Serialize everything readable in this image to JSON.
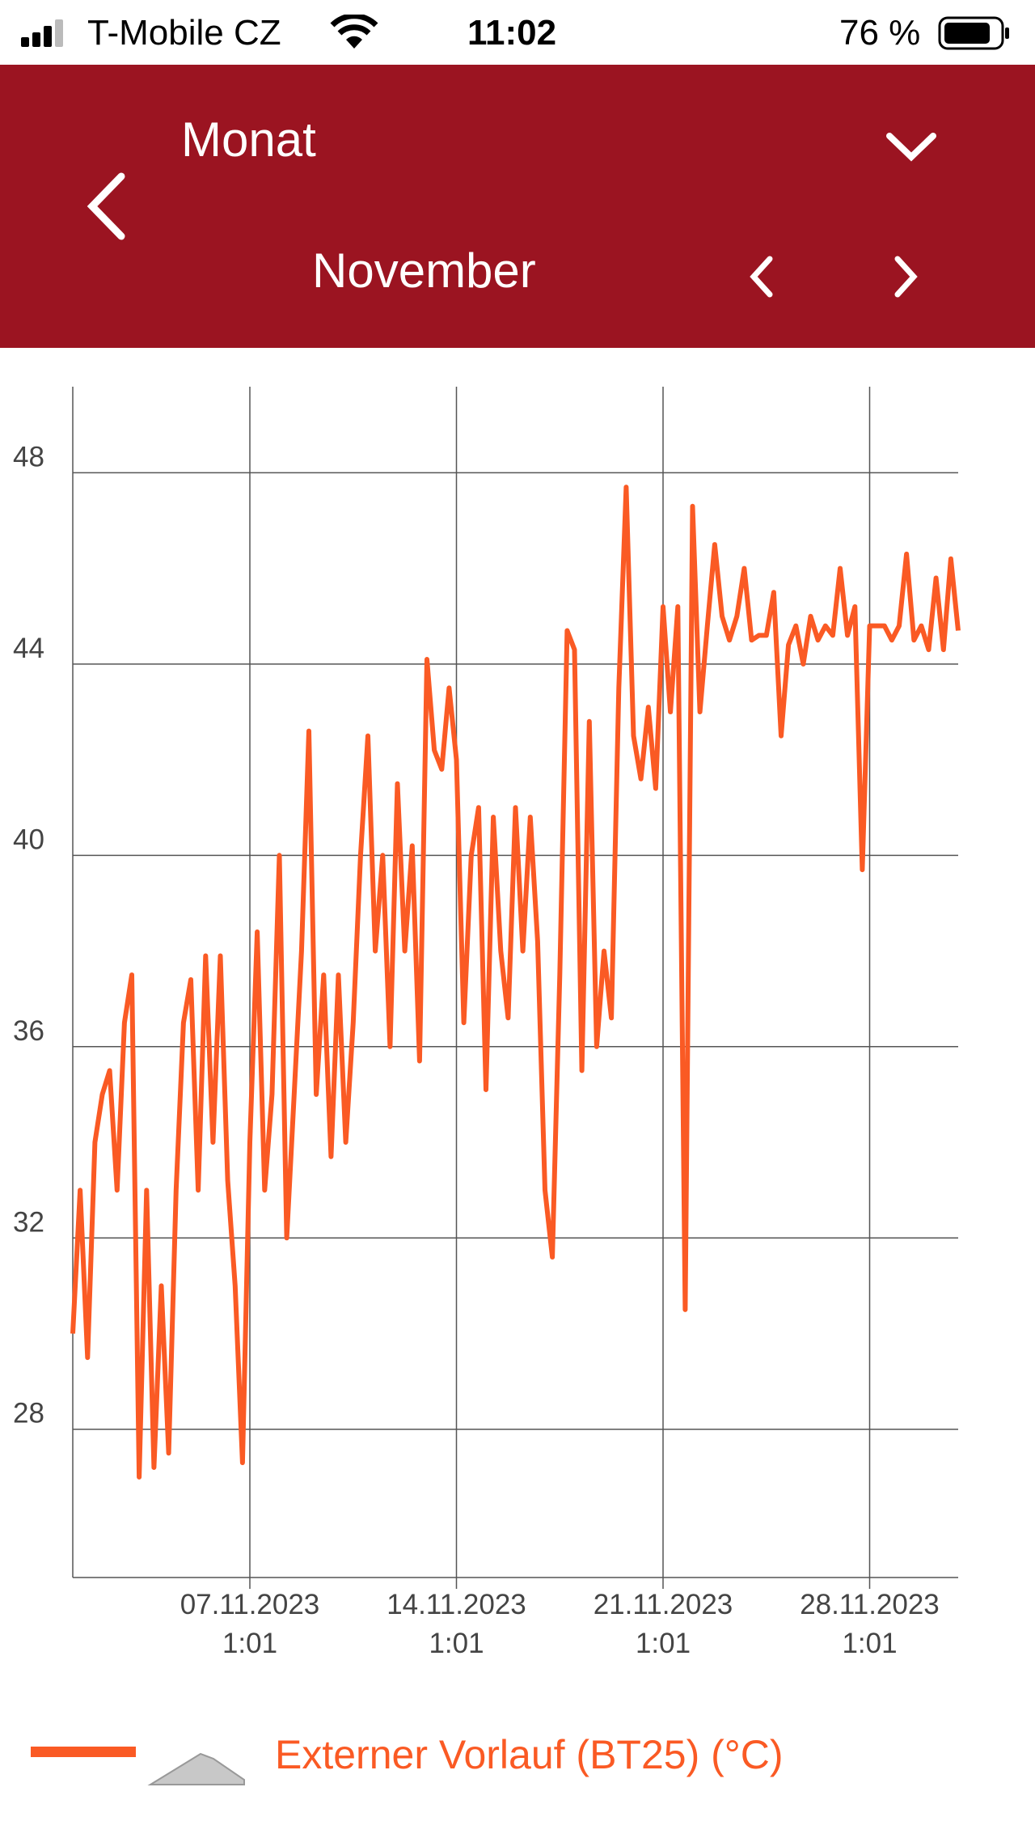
{
  "status_bar": {
    "carrier": "T-Mobile CZ",
    "time": "11:02",
    "battery": "76 %"
  },
  "header": {
    "period_label": "Monat",
    "period_value": "November"
  },
  "chart_data": {
    "type": "line",
    "x": [
      "2023-11-01T01:01",
      "2023-11-01T07:01",
      "2023-11-01T13:01",
      "2023-11-01T19:01",
      "2023-11-02T01:01",
      "2023-11-02T07:01",
      "2023-11-02T13:01",
      "2023-11-02T19:01",
      "2023-11-03T01:01",
      "2023-11-03T07:01",
      "2023-11-03T13:01",
      "2023-11-03T19:01",
      "2023-11-04T01:01",
      "2023-11-04T07:01",
      "2023-11-04T13:01",
      "2023-11-04T19:01",
      "2023-11-05T01:01",
      "2023-11-05T07:01",
      "2023-11-05T13:01",
      "2023-11-05T19:01",
      "2023-11-06T01:01",
      "2023-11-06T07:01",
      "2023-11-06T13:01",
      "2023-11-06T19:01",
      "2023-11-07T01:01",
      "2023-11-07T07:01",
      "2023-11-07T13:01",
      "2023-11-07T19:01",
      "2023-11-08T01:01",
      "2023-11-08T07:01",
      "2023-11-08T13:01",
      "2023-11-08T19:01",
      "2023-11-09T01:01",
      "2023-11-09T07:01",
      "2023-11-09T13:01",
      "2023-11-09T19:01",
      "2023-11-10T01:01",
      "2023-11-10T07:01",
      "2023-11-10T13:01",
      "2023-11-10T19:01",
      "2023-11-11T01:01",
      "2023-11-11T07:01",
      "2023-11-11T13:01",
      "2023-11-11T19:01",
      "2023-11-12T01:01",
      "2023-11-12T07:01",
      "2023-11-12T13:01",
      "2023-11-12T19:01",
      "2023-11-13T01:01",
      "2023-11-13T07:01",
      "2023-11-13T13:01",
      "2023-11-13T19:01",
      "2023-11-14T01:01",
      "2023-11-14T07:01",
      "2023-11-14T13:01",
      "2023-11-14T19:01",
      "2023-11-15T01:01",
      "2023-11-15T07:01",
      "2023-11-15T13:01",
      "2023-11-15T19:01",
      "2023-11-16T01:01",
      "2023-11-16T07:01",
      "2023-11-16T13:01",
      "2023-11-16T19:01",
      "2023-11-17T01:01",
      "2023-11-17T07:01",
      "2023-11-17T13:01",
      "2023-11-17T19:01",
      "2023-11-18T01:01",
      "2023-11-18T07:01",
      "2023-11-18T13:01",
      "2023-11-18T19:01",
      "2023-11-19T01:01",
      "2023-11-19T07:01",
      "2023-11-19T13:01",
      "2023-11-19T19:01",
      "2023-11-20T01:01",
      "2023-11-20T07:01",
      "2023-11-20T13:01",
      "2023-11-20T19:01",
      "2023-11-21T01:01",
      "2023-11-21T07:01",
      "2023-11-21T13:01",
      "2023-11-21T19:01",
      "2023-11-22T01:01",
      "2023-11-22T07:01",
      "2023-11-22T13:01",
      "2023-11-22T19:01",
      "2023-11-23T01:01",
      "2023-11-23T07:01",
      "2023-11-23T13:01",
      "2023-11-23T19:01",
      "2023-11-24T01:01",
      "2023-11-24T07:01",
      "2023-11-24T13:01",
      "2023-11-24T19:01",
      "2023-11-25T01:01",
      "2023-11-25T07:01",
      "2023-11-25T13:01",
      "2023-11-25T19:01",
      "2023-11-26T01:01",
      "2023-11-26T07:01",
      "2023-11-26T13:01",
      "2023-11-26T19:01",
      "2023-11-27T01:01",
      "2023-11-27T07:01",
      "2023-11-27T13:01",
      "2023-11-27T19:01",
      "2023-11-28T01:01",
      "2023-11-28T07:01",
      "2023-11-28T13:01",
      "2023-11-28T19:01",
      "2023-11-29T01:01",
      "2023-11-29T07:01",
      "2023-11-29T13:01",
      "2023-11-29T19:01",
      "2023-11-30T01:01",
      "2023-11-30T07:01",
      "2023-11-30T13:01",
      "2023-11-30T19:01",
      "2023-12-01T01:01"
    ],
    "series": [
      {
        "name": "Externer Vorlauf (BT25) (°C)",
        "color": "#fa5a24",
        "values": [
          30,
          33,
          29.5,
          34,
          35,
          35.5,
          33,
          36.5,
          37.5,
          27,
          33,
          27.2,
          31,
          27.5,
          33,
          36.5,
          37.4,
          33,
          37.9,
          34,
          37.9,
          33.2,
          31,
          27.3,
          34,
          38.4,
          33,
          35,
          40,
          32,
          35,
          38,
          42.6,
          35,
          37.5,
          33.7,
          37.5,
          34,
          36.5,
          40,
          42.5,
          38,
          40,
          36,
          41.5,
          38,
          40.2,
          35.7,
          44.1,
          42.2,
          41.8,
          43.5,
          42,
          36.5,
          40,
          41,
          35.1,
          40.8,
          38,
          36.6,
          41,
          38,
          40.8,
          38.2,
          33,
          31.6,
          37.5,
          44.7,
          44.3,
          35.5,
          42.8,
          36,
          38,
          36.6,
          43.5,
          47.7,
          42.5,
          41.6,
          43.1,
          41.4,
          45.2,
          43,
          45.2,
          30.5,
          47.3,
          43,
          44.8,
          46.5,
          45,
          44.5,
          45,
          46,
          44.5,
          44.6,
          44.6,
          45.5,
          42.5,
          44.4,
          44.8,
          44,
          45,
          44.5,
          44.8,
          44.6,
          46,
          44.6,
          45.2,
          39.7,
          44.8,
          44.8,
          44.8,
          44.5,
          44.8,
          46.3,
          44.5,
          44.8,
          44.3,
          45.8,
          44.3,
          46.2,
          44.7
        ]
      }
    ],
    "xlim": [
      "2023-11-01T01:01",
      "2023-12-01T01:01"
    ],
    "xticks": [
      {
        "value": "2023-11-07T01:01",
        "label": "07.11.2023\n1:01"
      },
      {
        "value": "2023-11-14T01:01",
        "label": "14.11.2023\n1:01"
      },
      {
        "value": "2023-11-21T01:01",
        "label": "21.11.2023\n1:01"
      },
      {
        "value": "2023-11-28T01:01",
        "label": "28.11.2023\n1:01"
      }
    ],
    "ylim": [
      24.9,
      49.8
    ],
    "yticks": [
      28,
      32,
      36,
      40,
      44,
      48
    ],
    "grid": true
  }
}
